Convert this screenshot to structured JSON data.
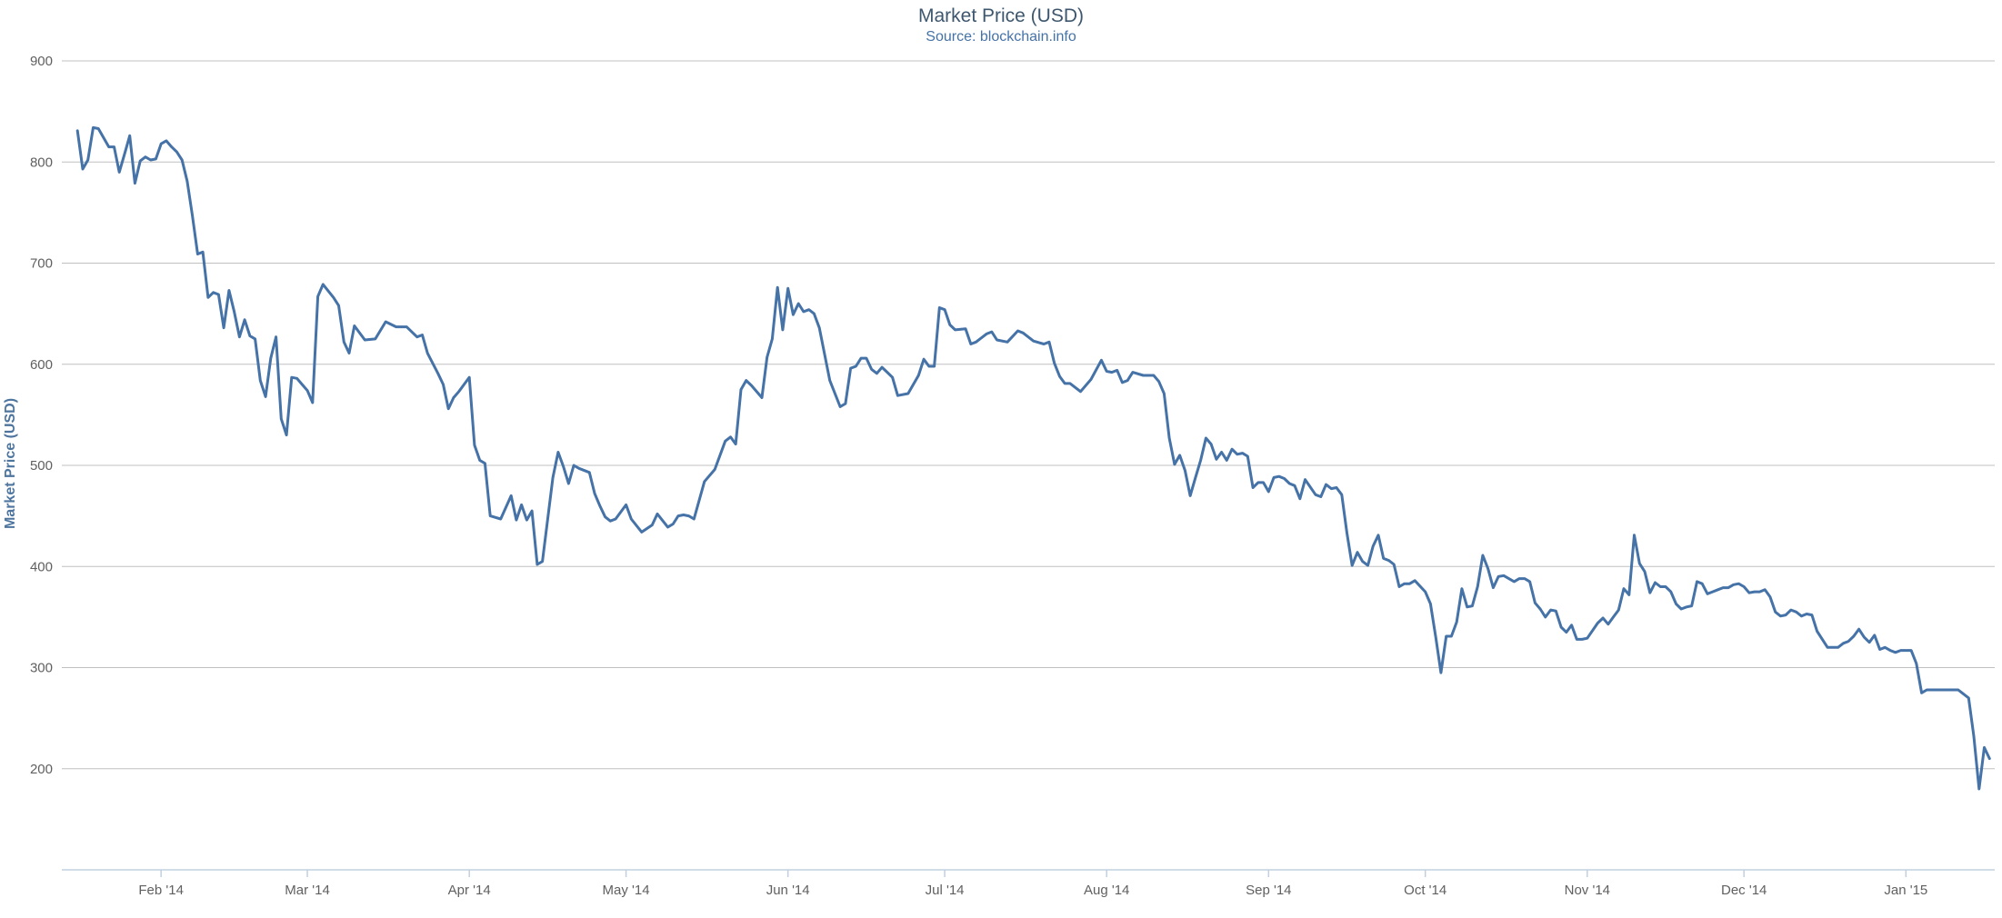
{
  "chart_data": {
    "type": "line",
    "title": "Market Price (USD)",
    "subtitle": "Source: blockchain.info",
    "ylabel": "Market Price (USD)",
    "xlabel": "",
    "ylim": [
      100,
      900
    ],
    "y_ticks": [
      200,
      300,
      400,
      500,
      600,
      700,
      800,
      900
    ],
    "x_range": [
      "2014-01-13",
      "2015-01-18"
    ],
    "x_ticks": [
      {
        "date": "2014-02-01",
        "label": "Feb '14"
      },
      {
        "date": "2014-03-01",
        "label": "Mar '14"
      },
      {
        "date": "2014-04-01",
        "label": "Apr '14"
      },
      {
        "date": "2014-05-01",
        "label": "May '14"
      },
      {
        "date": "2014-06-01",
        "label": "Jun '14"
      },
      {
        "date": "2014-07-01",
        "label": "Jul '14"
      },
      {
        "date": "2014-08-01",
        "label": "Aug '14"
      },
      {
        "date": "2014-09-01",
        "label": "Sep '14"
      },
      {
        "date": "2014-10-01",
        "label": "Oct '14"
      },
      {
        "date": "2014-11-01",
        "label": "Nov '14"
      },
      {
        "date": "2014-12-01",
        "label": "Dec '14"
      },
      {
        "date": "2015-01-01",
        "label": "Jan '15"
      }
    ],
    "grid": true,
    "legend": "none",
    "line_color": "#4572a7",
    "series": [
      {
        "x": [
          "2014-01-16",
          "2014-01-17",
          "2014-01-18",
          "2014-01-19",
          "2014-01-20",
          "2014-01-22",
          "2014-01-23",
          "2014-01-24",
          "2014-01-25",
          "2014-01-26",
          "2014-01-27",
          "2014-01-28",
          "2014-01-29",
          "2014-01-30",
          "2014-01-31",
          "2014-02-01",
          "2014-02-02",
          "2014-02-03",
          "2014-02-04",
          "2014-02-05",
          "2014-02-06",
          "2014-02-07",
          "2014-02-08",
          "2014-02-09",
          "2014-02-10",
          "2014-02-11",
          "2014-02-12",
          "2014-02-13",
          "2014-02-14",
          "2014-02-15",
          "2014-02-16",
          "2014-02-17",
          "2014-02-18",
          "2014-02-19",
          "2014-02-20",
          "2014-02-21",
          "2014-02-22",
          "2014-02-23",
          "2014-02-24",
          "2014-02-25",
          "2014-02-26",
          "2014-02-27",
          "2014-02-28",
          "2014-03-01",
          "2014-03-02",
          "2014-03-03",
          "2014-03-04",
          "2014-03-06",
          "2014-03-07",
          "2014-03-08",
          "2014-03-09",
          "2014-03-10",
          "2014-03-12",
          "2014-03-14",
          "2014-03-16",
          "2014-03-18",
          "2014-03-20",
          "2014-03-22",
          "2014-03-23",
          "2014-03-24",
          "2014-03-26",
          "2014-03-27",
          "2014-03-28",
          "2014-03-29",
          "2014-03-30",
          "2014-03-31",
          "2014-04-01",
          "2014-04-02",
          "2014-04-03",
          "2014-04-04",
          "2014-04-05",
          "2014-04-07",
          "2014-04-09",
          "2014-04-10",
          "2014-04-11",
          "2014-04-12",
          "2014-04-13",
          "2014-04-14",
          "2014-04-15",
          "2014-04-17",
          "2014-04-18",
          "2014-04-19",
          "2014-04-20",
          "2014-04-21",
          "2014-04-22",
          "2014-04-24",
          "2014-04-25",
          "2014-04-26",
          "2014-04-27",
          "2014-04-28",
          "2014-04-29",
          "2014-05-01",
          "2014-05-02",
          "2014-05-04",
          "2014-05-06",
          "2014-05-07",
          "2014-05-09",
          "2014-05-10",
          "2014-05-11",
          "2014-05-12",
          "2014-05-13",
          "2014-05-14",
          "2014-05-16",
          "2014-05-18",
          "2014-05-20",
          "2014-05-21",
          "2014-05-22",
          "2014-05-23",
          "2014-05-24",
          "2014-05-25",
          "2014-05-27",
          "2014-05-28",
          "2014-05-29",
          "2014-05-30",
          "2014-05-31",
          "2014-06-01",
          "2014-06-02",
          "2014-06-03",
          "2014-06-04",
          "2014-06-05",
          "2014-06-06",
          "2014-06-07",
          "2014-06-09",
          "2014-06-11",
          "2014-06-12",
          "2014-06-13",
          "2014-06-14",
          "2014-06-15",
          "2014-06-16",
          "2014-06-17",
          "2014-06-18",
          "2014-06-19",
          "2014-06-20",
          "2014-06-21",
          "2014-06-22",
          "2014-06-24",
          "2014-06-26",
          "2014-06-27",
          "2014-06-28",
          "2014-06-29",
          "2014-06-30",
          "2014-07-01",
          "2014-07-02",
          "2014-07-03",
          "2014-07-05",
          "2014-07-06",
          "2014-07-07",
          "2014-07-09",
          "2014-07-10",
          "2014-07-11",
          "2014-07-13",
          "2014-07-15",
          "2014-07-16",
          "2014-07-18",
          "2014-07-20",
          "2014-07-21",
          "2014-07-22",
          "2014-07-23",
          "2014-07-24",
          "2014-07-25",
          "2014-07-27",
          "2014-07-29",
          "2014-07-31",
          "2014-08-01",
          "2014-08-02",
          "2014-08-03",
          "2014-08-04",
          "2014-08-05",
          "2014-08-06",
          "2014-08-08",
          "2014-08-10",
          "2014-08-11",
          "2014-08-12",
          "2014-08-13",
          "2014-08-14",
          "2014-08-15",
          "2014-08-16",
          "2014-08-17",
          "2014-08-18",
          "2014-08-19",
          "2014-08-20",
          "2014-08-21",
          "2014-08-22",
          "2014-08-23",
          "2014-08-24",
          "2014-08-25",
          "2014-08-26",
          "2014-08-27",
          "2014-08-28",
          "2014-08-29",
          "2014-08-30",
          "2014-08-31",
          "2014-09-01",
          "2014-09-02",
          "2014-09-03",
          "2014-09-04",
          "2014-09-05",
          "2014-09-06",
          "2014-09-07",
          "2014-09-08",
          "2014-09-10",
          "2014-09-11",
          "2014-09-12",
          "2014-09-13",
          "2014-09-14",
          "2014-09-15",
          "2014-09-16",
          "2014-09-17",
          "2014-09-18",
          "2014-09-19",
          "2014-09-20",
          "2014-09-21",
          "2014-09-22",
          "2014-09-23",
          "2014-09-24",
          "2014-09-25",
          "2014-09-26",
          "2014-09-27",
          "2014-09-28",
          "2014-09-29",
          "2014-10-01",
          "2014-10-02",
          "2014-10-03",
          "2014-10-04",
          "2014-10-05",
          "2014-10-06",
          "2014-10-07",
          "2014-10-08",
          "2014-10-09",
          "2014-10-10",
          "2014-10-11",
          "2014-10-12",
          "2014-10-13",
          "2014-10-14",
          "2014-10-15",
          "2014-10-16",
          "2014-10-18",
          "2014-10-19",
          "2014-10-20",
          "2014-10-21",
          "2014-10-22",
          "2014-10-23",
          "2014-10-24",
          "2014-10-25",
          "2014-10-26",
          "2014-10-27",
          "2014-10-28",
          "2014-10-29",
          "2014-10-30",
          "2014-10-31",
          "2014-11-01",
          "2014-11-03",
          "2014-11-04",
          "2014-11-05",
          "2014-11-06",
          "2014-11-07",
          "2014-11-08",
          "2014-11-09",
          "2014-11-10",
          "2014-11-11",
          "2014-11-12",
          "2014-11-13",
          "2014-11-14",
          "2014-11-15",
          "2014-11-16",
          "2014-11-17",
          "2014-11-18",
          "2014-11-19",
          "2014-11-20",
          "2014-11-21",
          "2014-11-22",
          "2014-11-23",
          "2014-11-24",
          "2014-11-25",
          "2014-11-26",
          "2014-11-27",
          "2014-11-28",
          "2014-11-29",
          "2014-11-30",
          "2014-12-01",
          "2014-12-02",
          "2014-12-03",
          "2014-12-04",
          "2014-12-05",
          "2014-12-06",
          "2014-12-07",
          "2014-12-08",
          "2014-12-09",
          "2014-12-10",
          "2014-12-11",
          "2014-12-12",
          "2014-12-13",
          "2014-12-14",
          "2014-12-15",
          "2014-12-17",
          "2014-12-18",
          "2014-12-19",
          "2014-12-20",
          "2014-12-21",
          "2014-12-22",
          "2014-12-23",
          "2014-12-24",
          "2014-12-25",
          "2014-12-26",
          "2014-12-27",
          "2014-12-28",
          "2014-12-29",
          "2014-12-30",
          "2014-12-31",
          "2015-01-01",
          "2015-01-02",
          "2015-01-03",
          "2015-01-04",
          "2015-01-05",
          "2015-01-06",
          "2015-01-07",
          "2015-01-08",
          "2015-01-09",
          "2015-01-10",
          "2015-01-11",
          "2015-01-12",
          "2015-01-13",
          "2015-01-14",
          "2015-01-15",
          "2015-01-16",
          "2015-01-17"
        ],
        "values": [
          831,
          793,
          802,
          834,
          833,
          815,
          815,
          790,
          808,
          826,
          779,
          801,
          805,
          802,
          803,
          818,
          821,
          815,
          810,
          802,
          781,
          747,
          709,
          711,
          666,
          671,
          669,
          636,
          673,
          652,
          627,
          644,
          628,
          625,
          584,
          568,
          606,
          627,
          546,
          530,
          587,
          586,
          580,
          574,
          562,
          667,
          679,
          666,
          658,
          622,
          611,
          638,
          624,
          625,
          642,
          637,
          637,
          627,
          629,
          611,
          591,
          580,
          556,
          567,
          573,
          580,
          587,
          520,
          505,
          502,
          450,
          447,
          470,
          446,
          461,
          446,
          455,
          402,
          405,
          488,
          513,
          499,
          482,
          500,
          497,
          493,
          472,
          460,
          449,
          445,
          447,
          461,
          447,
          434,
          441,
          452,
          439,
          442,
          450,
          451,
          450,
          447,
          484,
          496,
          524,
          528,
          521,
          575,
          584,
          579,
          567,
          607,
          625,
          676,
          634,
          675,
          649,
          660,
          652,
          654,
          650,
          636,
          584,
          558,
          561,
          596,
          598,
          606,
          606,
          595,
          591,
          597,
          592,
          587,
          569,
          571,
          589,
          605,
          598,
          598,
          656,
          654,
          639,
          634,
          635,
          620,
          622,
          630,
          632,
          624,
          622,
          633,
          631,
          623,
          620,
          622,
          601,
          588,
          581,
          581,
          573,
          585,
          604,
          593,
          592,
          594,
          582,
          584,
          592,
          589,
          589,
          583,
          571,
          527,
          501,
          510,
          495,
          470,
          488,
          505,
          527,
          521,
          506,
          513,
          505,
          516,
          511,
          512,
          509,
          478,
          483,
          483,
          474,
          488,
          489,
          487,
          482,
          480,
          467,
          486,
          471,
          469,
          481,
          477,
          478,
          471,
          433,
          401,
          414,
          405,
          401,
          420,
          431,
          408,
          406,
          402,
          380,
          383,
          383,
          386,
          375,
          363,
          330,
          295,
          331,
          331,
          345,
          378,
          360,
          361,
          380,
          411,
          398,
          379,
          390,
          391,
          385,
          388,
          388,
          385,
          364,
          358,
          350,
          357,
          356,
          340,
          335,
          342,
          328,
          328,
          329,
          344,
          349,
          343,
          350,
          357,
          378,
          372,
          431,
          403,
          395,
          374,
          384,
          380,
          380,
          375,
          363,
          358,
          360,
          361,
          385,
          383,
          373,
          375,
          377,
          379,
          379,
          382,
          383,
          380,
          374,
          375,
          375,
          377,
          370,
          355,
          351,
          352,
          357,
          355,
          351,
          353,
          352,
          336,
          320,
          320,
          320,
          324,
          326,
          331,
          338,
          330,
          325,
          332,
          318,
          320,
          317,
          315,
          317,
          317,
          317,
          304,
          275,
          278,
          278,
          278,
          278,
          278,
          278,
          278,
          274,
          270,
          232,
          180,
          221,
          210
        ]
      }
    ]
  }
}
